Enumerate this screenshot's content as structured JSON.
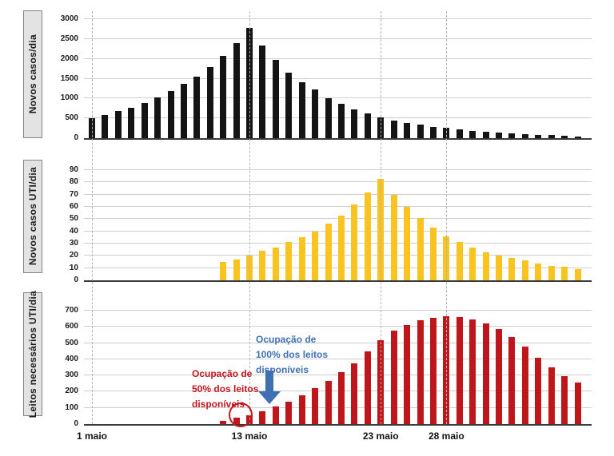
{
  "chart_data": [
    {
      "type": "bar",
      "title": "Novos casos/dia",
      "ylabel": "Novos casos/dia",
      "color": "#141414",
      "ylim": [
        0,
        3000
      ],
      "y_ticks": [
        0,
        500,
        1000,
        1500,
        2000,
        2500,
        3000
      ],
      "x_start_day": 1,
      "values": [
        500,
        590,
        675,
        775,
        885,
        1025,
        1185,
        1365,
        1560,
        1790,
        2070,
        2390,
        2770,
        2340,
        1970,
        1660,
        1410,
        1220,
        1010,
        870,
        730,
        615,
        520,
        450,
        390,
        335,
        290,
        255,
        220,
        190,
        165,
        140,
        120,
        100,
        85,
        75,
        60,
        50
      ]
    },
    {
      "type": "bar",
      "title": "Novos casos UTI/dia",
      "ylabel": "Novos casos UTI/dia",
      "color": "#f9c320",
      "ylim": [
        0,
        90
      ],
      "y_ticks": [
        0,
        10,
        20,
        30,
        40,
        50,
        60,
        70,
        80,
        90
      ],
      "x_start_day": 11,
      "values": [
        15,
        17,
        20,
        24,
        27,
        31,
        35,
        40,
        46,
        53,
        62,
        72,
        83,
        70,
        60,
        51,
        43,
        36,
        31,
        27,
        23,
        20,
        18,
        16,
        14,
        12,
        11,
        9
      ]
    },
    {
      "type": "bar",
      "title": "Leitos necessários UTI/dia",
      "ylabel": "Leitos necessários UTI/dia",
      "color": "#bf161c",
      "ylim": [
        0,
        700
      ],
      "y_ticks": [
        0,
        100,
        200,
        300,
        400,
        500,
        600,
        700
      ],
      "x_start_day": 11,
      "values": [
        20,
        40,
        55,
        80,
        110,
        140,
        180,
        220,
        265,
        320,
        375,
        450,
        520,
        575,
        610,
        640,
        655,
        665,
        660,
        645,
        620,
        585,
        535,
        480,
        410,
        350,
        295,
        255
      ]
    }
  ],
  "x_axis": {
    "labels": [
      {
        "text": "1 maio",
        "day": 1
      },
      {
        "text": "13 maio",
        "day": 13
      },
      {
        "text": "23 maio",
        "day": 23
      },
      {
        "text": "28 maio",
        "day": 28
      }
    ]
  },
  "annotations": {
    "occupancy_50": {
      "lines": [
        "Ocupação de",
        "50% dos leitos",
        "disponíveis"
      ],
      "color": "#c2181e"
    },
    "occupancy_100": {
      "lines": [
        "Ocupação de",
        "100% dos leitos",
        "disponíveis"
      ],
      "color": "#4070b4"
    }
  }
}
